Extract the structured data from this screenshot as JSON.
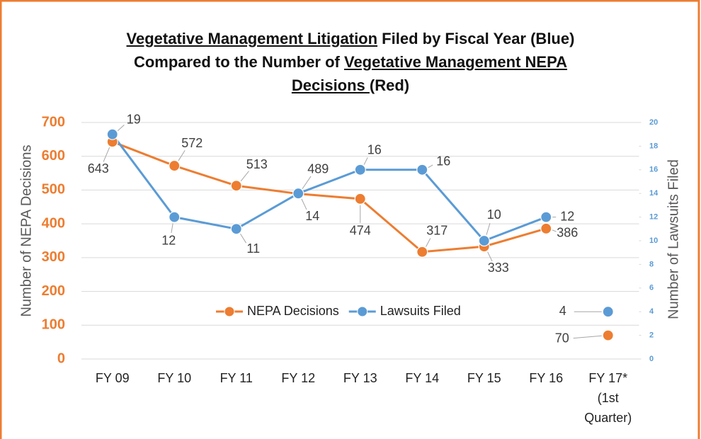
{
  "chart_data": {
    "type": "line",
    "title": [
      [
        {
          "text": "Vegetative Management Litigation",
          "underline": true
        },
        {
          "text": " Filed by Fiscal Year (Blue)",
          "underline": false
        }
      ],
      [
        {
          "text": "Compared to the Number of ",
          "underline": false
        },
        {
          "text": "Vegetative Management NEPA",
          "underline": true
        }
      ],
      [
        {
          "text": "Decisions ",
          "underline": true
        },
        {
          "text": "(Red)",
          "underline": false
        }
      ]
    ],
    "categories": [
      "FY 09",
      "FY 10",
      "FY 11",
      "FY 12",
      "FY 13",
      "FY 14",
      "FY 15",
      "FY 16",
      "FY 17* (1st Quarter)"
    ],
    "series": [
      {
        "name": "NEPA Decisions",
        "color": "#ed7d31",
        "values": [
          643,
          572,
          513,
          489,
          474,
          317,
          333,
          386,
          70
        ]
      },
      {
        "name": "Lawsuits Filed",
        "color": "#5b9bd5",
        "axis": "y2",
        "values": [
          19,
          12,
          11,
          14,
          16,
          16,
          10,
          12,
          4
        ]
      }
    ],
    "ylabel": "Number of NEPA Decisions",
    "y2label": "Number of Lawsuits Filed",
    "ylim": [
      0,
      700
    ],
    "yticks": [
      0,
      100,
      200,
      300,
      400,
      500,
      600,
      700
    ],
    "y2lim": [
      0,
      20
    ],
    "y2ticks": [
      0,
      2,
      4,
      6,
      8,
      10,
      12,
      14,
      16,
      18,
      20
    ],
    "grid": true,
    "legend": "bottom"
  }
}
